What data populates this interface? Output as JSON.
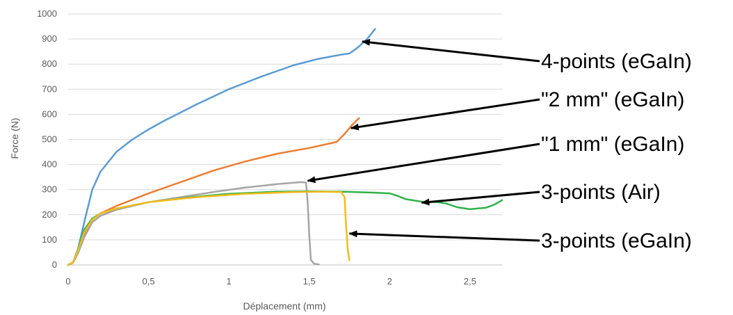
{
  "chart_data": {
    "type": "line",
    "xlabel": "Déplacement (mm)",
    "ylabel": "Force (N)",
    "xlim": [
      0,
      2.7
    ],
    "ylim": [
      0,
      1000
    ],
    "x_ticks": [
      0,
      0.5,
      1,
      1.5,
      2,
      2.5
    ],
    "x_tick_labels": [
      "0",
      "0,5",
      "1",
      "1,5",
      "2",
      "2,5"
    ],
    "y_ticks": [
      0,
      100,
      200,
      300,
      400,
      500,
      600,
      700,
      800,
      900,
      1000
    ],
    "y_tick_labels": [
      "0",
      "100",
      "200",
      "300",
      "400",
      "500",
      "600",
      "700",
      "800",
      "900",
      "1000"
    ],
    "grid": "horizontal",
    "legend": "none",
    "series": [
      {
        "name": "4-points (eGaIn)",
        "color": "#5b9bd5",
        "x": [
          0,
          0.03,
          0.06,
          0.1,
          0.15,
          0.2,
          0.3,
          0.4,
          0.5,
          0.6,
          0.8,
          1.0,
          1.2,
          1.4,
          1.55,
          1.7,
          1.75,
          1.8,
          1.86,
          1.91
        ],
        "y": [
          0,
          10,
          60,
          170,
          300,
          370,
          450,
          500,
          540,
          575,
          640,
          700,
          750,
          795,
          820,
          838,
          842,
          865,
          900,
          940
        ]
      },
      {
        "name": "\"2 mm\"  (eGaIn)",
        "color": "#ed7d31",
        "x": [
          0,
          0.03,
          0.06,
          0.1,
          0.15,
          0.2,
          0.3,
          0.5,
          0.7,
          0.9,
          1.1,
          1.3,
          1.5,
          1.67,
          1.72,
          1.77,
          1.81
        ],
        "y": [
          0,
          10,
          50,
          120,
          180,
          205,
          235,
          285,
          330,
          375,
          412,
          443,
          466,
          490,
          522,
          560,
          585
        ]
      },
      {
        "name": "\"1 mm\" (eGaIn)",
        "color": "#a5a5a5",
        "x": [
          0,
          0.03,
          0.06,
          0.1,
          0.15,
          0.2,
          0.3,
          0.5,
          0.7,
          0.9,
          1.1,
          1.3,
          1.45,
          1.48,
          1.49,
          1.5,
          1.51,
          1.53,
          1.56
        ],
        "y": [
          0,
          8,
          45,
          110,
          170,
          195,
          220,
          250,
          270,
          290,
          308,
          322,
          330,
          328,
          250,
          120,
          20,
          5,
          2
        ]
      },
      {
        "name": "3-points (Air)",
        "color": "#2fb34a",
        "x": [
          0,
          0.03,
          0.06,
          0.1,
          0.15,
          0.2,
          0.3,
          0.5,
          0.8,
          1.0,
          1.3,
          1.5,
          1.7,
          1.9,
          2.0,
          2.05,
          2.1,
          2.2,
          2.3,
          2.35,
          2.42,
          2.5,
          2.55,
          2.6,
          2.65,
          2.7
        ],
        "y": [
          0,
          10,
          60,
          140,
          185,
          205,
          225,
          250,
          272,
          283,
          292,
          293,
          292,
          288,
          285,
          275,
          262,
          252,
          250,
          245,
          230,
          222,
          225,
          228,
          240,
          258
        ]
      },
      {
        "name": "3-points (eGaIn)",
        "color": "#f2bc1d",
        "x": [
          0,
          0.03,
          0.06,
          0.1,
          0.15,
          0.2,
          0.3,
          0.5,
          0.8,
          1.1,
          1.4,
          1.6,
          1.7,
          1.72,
          1.73,
          1.74,
          1.75
        ],
        "y": [
          0,
          10,
          55,
          130,
          180,
          205,
          225,
          250,
          270,
          283,
          290,
          292,
          290,
          270,
          150,
          60,
          18
        ]
      }
    ],
    "annotations": [
      {
        "text": "4-points (eGaIn)",
        "target": [
          1.83,
          890
        ]
      },
      {
        "text": "\"2 mm\"  (eGaIn)",
        "target": [
          1.76,
          545
        ]
      },
      {
        "text": "\"1 mm\" (eGaIn)",
        "target": [
          1.49,
          335
        ]
      },
      {
        "text": "3-points (Air)",
        "target": [
          2.2,
          248
        ]
      },
      {
        "text": "3-points (eGaIn)",
        "target": [
          1.75,
          125
        ]
      }
    ]
  }
}
